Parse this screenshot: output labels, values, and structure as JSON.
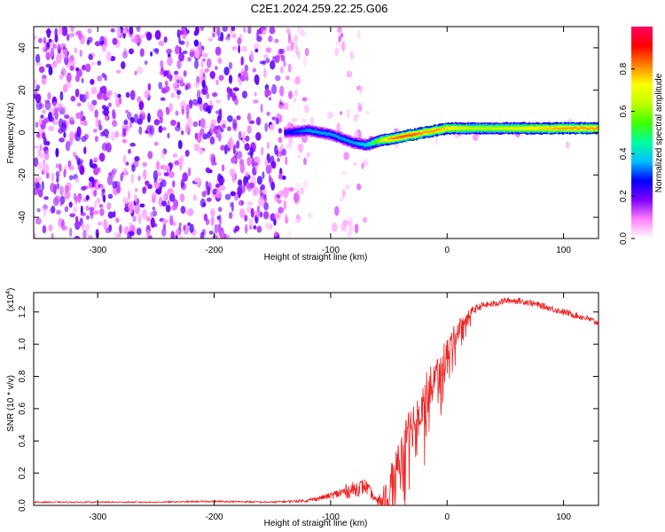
{
  "title": "C2E1.2024.259.22.25.G06",
  "chart_data": [
    {
      "type": "heatmap",
      "title": "C2E1.2024.259.22.25.G06",
      "xlabel": "Height of straight line (km)",
      "ylabel": "Frequency (Hz)",
      "xlim": [
        -355,
        130
      ],
      "ylim": [
        -50,
        50
      ],
      "xticks": [
        -300,
        -200,
        -100,
        0,
        100
      ],
      "xtick_labels": [
        "-300",
        "-200",
        "-100",
        "0",
        "100"
      ],
      "yticks": [
        -40,
        -20,
        0,
        20,
        40
      ],
      "ytick_labels": [
        "-40",
        "-20",
        "0",
        "20",
        "40"
      ],
      "colorbar": {
        "label": "Normalized spectral amplitude",
        "range": [
          0,
          1
        ],
        "ticks": [
          0.0,
          0.2,
          0.4,
          0.6,
          0.8
        ],
        "tick_labels": [
          "0.0",
          "0.2",
          "0.4",
          "0.6",
          "0.8"
        ],
        "colors": [
          "#ffffff",
          "#ff80ff",
          "#8000ff",
          "#0000ff",
          "#00c0ff",
          "#00ffa0",
          "#40ff00",
          "#c0ff00",
          "#ffff00",
          "#ff8000",
          "#ff0000",
          "#ff0060"
        ]
      },
      "ridge": {
        "x": [
          -140,
          -120,
          -100,
          -80,
          -70,
          -60,
          -50,
          -40,
          -30,
          -20,
          -10,
          0,
          20,
          40,
          60,
          80,
          100,
          130
        ],
        "frequency": [
          0,
          1,
          -1,
          -5,
          -6,
          -4,
          -3,
          -2,
          -1,
          0,
          1,
          2,
          2,
          2,
          2,
          2,
          2,
          2
        ],
        "amplitude": [
          0.25,
          0.35,
          0.35,
          0.35,
          0.4,
          0.6,
          0.8,
          0.85,
          0.85,
          0.8,
          0.8,
          0.75,
          0.65,
          0.65,
          0.7,
          0.75,
          0.8,
          0.8
        ]
      }
    },
    {
      "type": "line",
      "xlabel": "Height of straight line (km)",
      "ylabel": "SNR (10 * v/v)",
      "y_multiplier": "(x10",
      "y_multiplier_exp": "4",
      "xlim": [
        -355,
        130
      ],
      "ylim": [
        0,
        1.32
      ],
      "xticks": [
        -300,
        -200,
        -100,
        0,
        100
      ],
      "xtick_labels": [
        "-300",
        "-200",
        "-100",
        "0",
        "100"
      ],
      "yticks": [
        0.0,
        0.2,
        0.4,
        0.6,
        0.8,
        1.0,
        1.2
      ],
      "ytick_labels": [
        "0.0",
        "0.2",
        "0.4",
        "0.6",
        "0.8",
        "1.0",
        "1.2"
      ],
      "color": "#ee2222",
      "series": [
        {
          "name": "SNR",
          "x": [
            -355,
            -300,
            -250,
            -200,
            -150,
            -120,
            -100,
            -90,
            -80,
            -70,
            -60,
            -50,
            -40,
            -30,
            -20,
            -10,
            0,
            10,
            20,
            30,
            40,
            50,
            60,
            70,
            80,
            90,
            100,
            110,
            120,
            130
          ],
          "values": [
            0.02,
            0.02,
            0.02,
            0.025,
            0.02,
            0.03,
            0.06,
            0.08,
            0.1,
            0.12,
            0.02,
            0.1,
            0.3,
            0.5,
            0.65,
            0.8,
            0.95,
            1.1,
            1.2,
            1.24,
            1.25,
            1.27,
            1.27,
            1.26,
            1.24,
            1.22,
            1.2,
            1.18,
            1.16,
            1.13
          ],
          "noise": [
            0.004,
            0.004,
            0.004,
            0.005,
            0.005,
            0.01,
            0.02,
            0.04,
            0.05,
            0.05,
            0.02,
            0.1,
            0.15,
            0.15,
            0.15,
            0.12,
            0.1,
            0.06,
            0.03,
            0.02,
            0.02,
            0.02,
            0.02,
            0.02,
            0.02,
            0.02,
            0.02,
            0.02,
            0.02,
            0.02
          ]
        }
      ]
    }
  ]
}
